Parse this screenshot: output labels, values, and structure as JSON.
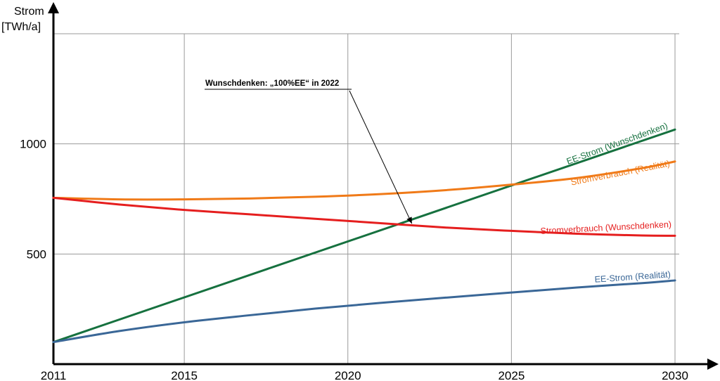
{
  "chart_data": {
    "type": "line",
    "ylabel_line1": "Strom",
    "ylabel_line2": "[TWh/a]",
    "xlim": [
      2011,
      2030
    ],
    "ylim": [
      0,
      1500
    ],
    "xticks": [
      2011,
      2015,
      2020,
      2025,
      2030
    ],
    "yticks": [
      500,
      1000
    ],
    "grid": true,
    "series": [
      {
        "name": "EE-Strom (Wunschdenken)",
        "color": "#16713f",
        "x": [
          2011,
          2030
        ],
        "y": [
          100,
          1065
        ]
      },
      {
        "name": "Stromverbrauch (Realität)",
        "color": "#f07a18",
        "x": [
          2011,
          2013,
          2015,
          2017,
          2019,
          2021,
          2023,
          2025,
          2027,
          2029,
          2030
        ],
        "y": [
          755,
          748,
          748,
          752,
          760,
          772,
          790,
          815,
          845,
          890,
          920
        ]
      },
      {
        "name": "Stromverbrauch (Wunschdenken)",
        "color": "#e51e1e",
        "x": [
          2011,
          2013,
          2015,
          2017,
          2019,
          2021,
          2023,
          2025,
          2027,
          2029,
          2030
        ],
        "y": [
          755,
          725,
          700,
          680,
          660,
          640,
          620,
          605,
          592,
          584,
          583
        ]
      },
      {
        "name": "EE-Strom (Realität)",
        "color": "#3a6797",
        "x": [
          2011,
          2013,
          2015,
          2017,
          2019,
          2021,
          2023,
          2025,
          2027,
          2029,
          2030
        ],
        "y": [
          100,
          150,
          190,
          222,
          252,
          278,
          302,
          325,
          348,
          368,
          380
        ]
      }
    ],
    "annotation": {
      "text": "Wunschdenken: „100%EE“ in 2022",
      "x": 2022,
      "y": 625
    }
  }
}
